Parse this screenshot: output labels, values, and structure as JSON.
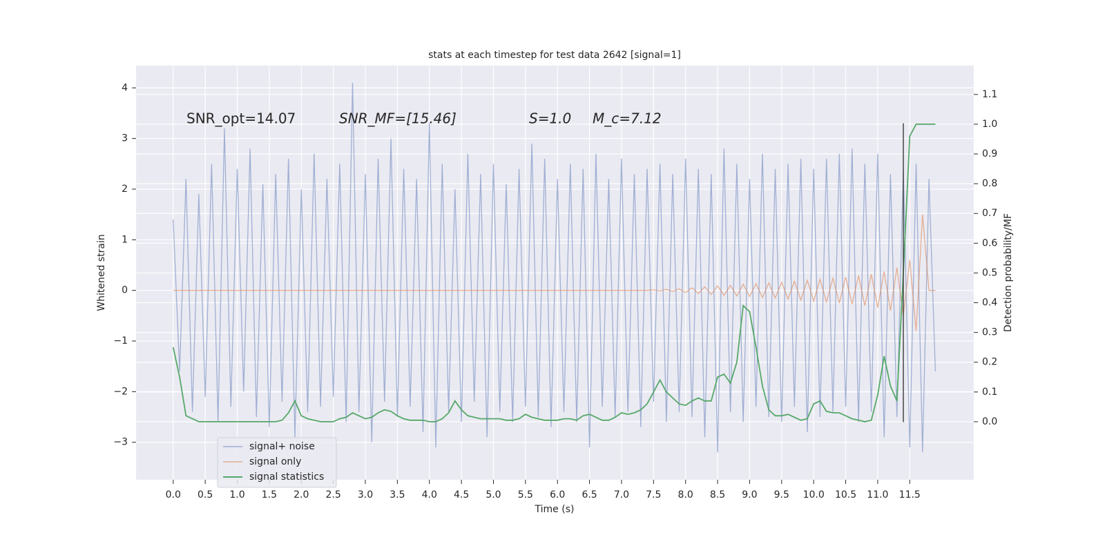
{
  "chart_data": {
    "type": "line",
    "title": "stats at each timestep for test data 2642 [signal=1]",
    "xlabel": "Time (s)",
    "ylabel": "Whitened strain",
    "y2label": "Detection probability/MF",
    "annotations": [
      "SNR_opt=14.07",
      "SNR_MF=[15.46]",
      "S=1.0",
      "M_c=7.12"
    ],
    "grid": true,
    "legend": "lower left",
    "xlim": [
      -0.58,
      12.5
    ],
    "ylim": [
      -3.74,
      4.44
    ],
    "y2lim": [
      -0.195,
      1.197
    ],
    "xticks": [
      {
        "value": 0,
        "label": "0.0"
      },
      0.5,
      {
        "value": 1,
        "label": "1.0"
      },
      1.5,
      {
        "value": 2,
        "label": "2.0"
      },
      2.5,
      {
        "value": 3,
        "label": "3.0"
      },
      3.5,
      {
        "value": 4,
        "label": "4.0"
      },
      4.5,
      {
        "value": 5,
        "label": "5.0"
      },
      5.5,
      {
        "value": 6,
        "label": "6.0"
      },
      6.5,
      {
        "value": 7,
        "label": "7.0"
      },
      7.5,
      {
        "value": 8,
        "label": "8.0"
      },
      8.5,
      {
        "value": 9,
        "label": "9.0"
      },
      9.5,
      {
        "value": 10,
        "label": "10.0"
      },
      10.5,
      {
        "value": 11,
        "label": "11.0"
      },
      11.5
    ],
    "yticks": [
      {
        "value": -3,
        "label": "−3"
      },
      {
        "value": -2,
        "label": "−2"
      },
      {
        "value": -1,
        "label": "−1"
      },
      0,
      1,
      2,
      3,
      4
    ],
    "y2ticks": [
      {
        "value": 0,
        "label": "0.0"
      },
      0.1,
      0.2,
      0.3,
      0.4,
      0.5,
      0.6,
      0.7,
      0.8,
      0.9,
      {
        "value": 1,
        "label": "1.0"
      },
      1.1
    ],
    "vline": {
      "x": 11.4,
      "ymin": -2.6,
      "ymax": 3.3,
      "color": "#444444"
    },
    "x": [
      0.0,
      0.1,
      0.2,
      0.3,
      0.4,
      0.5,
      0.6,
      0.7,
      0.8,
      0.9,
      1.0,
      1.1,
      1.2,
      1.3,
      1.4,
      1.5,
      1.6,
      1.7,
      1.8,
      1.9,
      2.0,
      2.1,
      2.2,
      2.3,
      2.4,
      2.5,
      2.6,
      2.7,
      2.8,
      2.9,
      3.0,
      3.1,
      3.2,
      3.3,
      3.4,
      3.5,
      3.6,
      3.7,
      3.8,
      3.9,
      4.0,
      4.1,
      4.2,
      4.3,
      4.4,
      4.5,
      4.6,
      4.7,
      4.8,
      4.9,
      5.0,
      5.1,
      5.2,
      5.3,
      5.4,
      5.5,
      5.6,
      5.7,
      5.8,
      5.9,
      6.0,
      6.1,
      6.2,
      6.3,
      6.4,
      6.5,
      6.6,
      6.7,
      6.8,
      6.9,
      7.0,
      7.1,
      7.2,
      7.3,
      7.4,
      7.5,
      7.6,
      7.7,
      7.8,
      7.9,
      8.0,
      8.1,
      8.2,
      8.3,
      8.4,
      8.5,
      8.6,
      8.7,
      8.8,
      8.9,
      9.0,
      9.1,
      9.2,
      9.3,
      9.4,
      9.5,
      9.6,
      9.7,
      9.8,
      9.9,
      10.0,
      10.1,
      10.2,
      10.3,
      10.4,
      10.5,
      10.6,
      10.7,
      10.8,
      10.9,
      11.0,
      11.1,
      11.2,
      11.3,
      11.4,
      11.5,
      11.6,
      11.7,
      11.8,
      11.9
    ],
    "series": [
      {
        "name": "signal+ noise",
        "color": "#8da0cb",
        "values": [
          1.4,
          -1.6,
          2.2,
          -2.4,
          1.9,
          -2.1,
          2.5,
          -2.6,
          3.2,
          -2.3,
          2.4,
          -2.0,
          2.8,
          -2.5,
          2.1,
          -2.7,
          2.3,
          -2.2,
          2.6,
          -2.9,
          2.0,
          -2.4,
          2.7,
          -2.3,
          2.2,
          -2.1,
          2.5,
          -2.6,
          4.1,
          -2.4,
          2.3,
          -3.0,
          2.6,
          -2.2,
          3.0,
          -2.5,
          2.4,
          -2.3,
          2.2,
          -2.8,
          3.3,
          -3.1,
          2.5,
          -2.4,
          2.0,
          -2.6,
          2.7,
          -2.2,
          2.3,
          -2.9,
          2.5,
          -2.4,
          2.1,
          -2.6,
          2.4,
          -2.3,
          2.9,
          -2.5,
          2.6,
          -2.7,
          2.2,
          -2.4,
          2.5,
          -2.6,
          2.4,
          -3.1,
          2.7,
          -2.3,
          2.2,
          -2.5,
          2.6,
          -2.4,
          2.3,
          -2.7,
          2.4,
          -2.2,
          2.5,
          -2.6,
          2.3,
          -2.4,
          2.6,
          -2.5,
          2.4,
          -2.9,
          2.3,
          -3.2,
          2.8,
          -2.4,
          2.5,
          -2.6,
          2.2,
          -2.3,
          2.7,
          -2.5,
          2.4,
          -2.6,
          2.5,
          -2.3,
          2.6,
          -2.8,
          2.4,
          -2.5,
          2.6,
          -2.4,
          2.7,
          -2.3,
          2.8,
          -2.6,
          2.5,
          -2.4,
          2.7,
          -2.9,
          2.3,
          -2.5,
          2.4,
          -3.1,
          2.5,
          -3.2,
          2.2,
          -1.6
        ]
      },
      {
        "name": "signal only",
        "color": "#dd8452",
        "values": [
          0,
          0,
          0,
          0,
          0,
          0,
          0,
          0,
          0,
          0,
          0,
          0,
          0,
          0,
          0,
          0,
          0,
          0,
          0,
          0,
          0,
          0,
          0,
          0,
          0,
          0,
          0,
          0,
          0,
          0,
          0,
          0,
          0,
          0,
          0,
          0,
          0,
          0,
          0,
          0,
          0,
          0,
          0,
          0,
          0,
          0,
          0,
          0,
          0,
          0,
          0,
          0,
          0,
          0,
          0,
          0,
          0,
          0,
          0,
          0,
          0,
          0,
          0,
          0,
          0,
          0,
          0,
          0,
          0,
          0,
          0,
          0,
          0,
          0,
          0,
          0.01,
          -0.01,
          0.02,
          -0.02,
          0.03,
          -0.04,
          0.05,
          -0.06,
          0.07,
          -0.08,
          0.09,
          -0.1,
          0.1,
          -0.11,
          0.12,
          -0.12,
          0.13,
          -0.14,
          0.15,
          -0.15,
          0.16,
          -0.17,
          0.18,
          -0.19,
          0.2,
          -0.21,
          0.22,
          -0.23,
          0.24,
          -0.25,
          0.26,
          -0.27,
          0.29,
          -0.3,
          0.32,
          -0.34,
          0.37,
          -0.4,
          0.45,
          -0.5,
          0.6,
          -0.8,
          1.5,
          0,
          0
        ]
      },
      {
        "name": "signal statistics",
        "color": "#55a868",
        "axis": "y2",
        "values": [
          0.25,
          0.15,
          0.02,
          0.01,
          0.0,
          0.0,
          0.0,
          0.0,
          0.0,
          0.0,
          0.0,
          0.0,
          0.0,
          0.0,
          0.0,
          0.0,
          0.0,
          0.005,
          0.03,
          0.07,
          0.02,
          0.01,
          0.005,
          0.0,
          0.0,
          0.0,
          0.01,
          0.015,
          0.03,
          0.02,
          0.01,
          0.015,
          0.03,
          0.04,
          0.035,
          0.02,
          0.01,
          0.005,
          0.005,
          0.005,
          0.0,
          0.0,
          0.01,
          0.03,
          0.07,
          0.04,
          0.02,
          0.015,
          0.01,
          0.01,
          0.01,
          0.01,
          0.005,
          0.005,
          0.01,
          0.025,
          0.015,
          0.01,
          0.005,
          0.005,
          0.005,
          0.01,
          0.01,
          0.005,
          0.02,
          0.025,
          0.015,
          0.005,
          0.005,
          0.015,
          0.03,
          0.025,
          0.03,
          0.04,
          0.06,
          0.1,
          0.14,
          0.1,
          0.08,
          0.06,
          0.055,
          0.07,
          0.08,
          0.07,
          0.07,
          0.15,
          0.16,
          0.13,
          0.2,
          0.39,
          0.37,
          0.25,
          0.12,
          0.04,
          0.02,
          0.02,
          0.025,
          0.015,
          0.005,
          0.01,
          0.06,
          0.07,
          0.035,
          0.03,
          0.03,
          0.02,
          0.01,
          0.005,
          0.0,
          0.005,
          0.09,
          0.22,
          0.12,
          0.07,
          0.5,
          0.96,
          1.0,
          1.0,
          1.0,
          1.0
        ]
      }
    ]
  }
}
